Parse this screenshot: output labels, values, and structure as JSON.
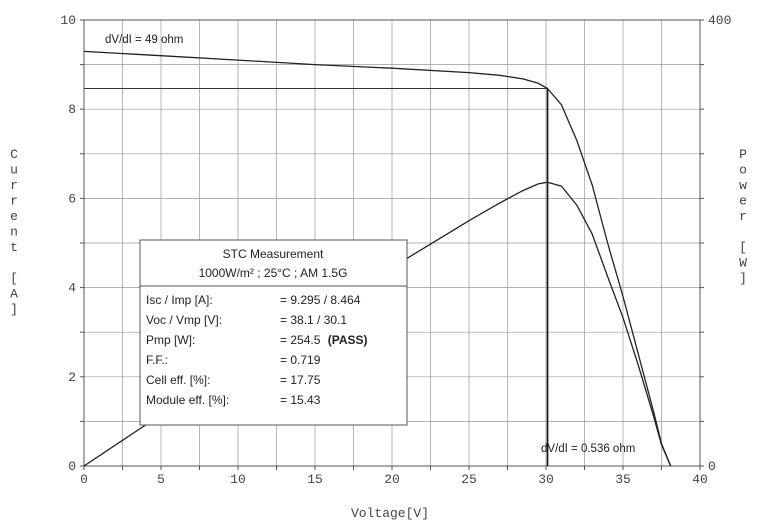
{
  "chart_data": {
    "type": "line",
    "xlabel": "Voltage[V]",
    "ylabel_left": "Current [A]",
    "ylabel_right": "Power [W]",
    "xlim": [
      0,
      40
    ],
    "ylim_left": [
      0,
      10
    ],
    "ylim_right": [
      0,
      400
    ],
    "x_ticks": [
      "0",
      "5",
      "10",
      "15",
      "20",
      "25",
      "30",
      "35",
      "40"
    ],
    "y_ticks_left": [
      "0",
      "2",
      "4",
      "6",
      "8",
      "10"
    ],
    "y_ticks_right": [
      "0",
      "400"
    ],
    "grid": true,
    "series": [
      {
        "axis": "left",
        "x": [
          0,
          5,
          10,
          15,
          20,
          25,
          27,
          28.5,
          29.5,
          30.1,
          31,
          32,
          33,
          34,
          35,
          36,
          37,
          37.5,
          38.1
        ],
        "y": [
          9.295,
          9.2,
          9.1,
          9.0,
          8.92,
          8.82,
          8.76,
          8.68,
          8.58,
          8.464,
          8.1,
          7.3,
          6.3,
          5.0,
          3.8,
          2.5,
          1.2,
          0.5,
          0
        ]
      },
      {
        "axis": "right",
        "x": [
          0,
          5,
          10,
          15,
          20,
          25,
          27,
          28.5,
          29.5,
          30.1,
          31,
          32,
          33,
          34,
          35,
          36,
          37,
          37.5,
          38.1
        ],
        "y": [
          0,
          46,
          91,
          135,
          178,
          220,
          236,
          247,
          253,
          254.5,
          251,
          234,
          208,
          170,
          133,
          90,
          44,
          19,
          0
        ]
      }
    ],
    "reference_lines": {
      "imp": 8.464,
      "vmp": 30.1
    },
    "annotations": {
      "top_left": "dV/dI = 49 ohm",
      "bottom_right": "dV/dI = 0.536 ohm"
    },
    "info_box": {
      "title": "STC Measurement",
      "subtitle": "1000W/m² ;  25°C ;  AM 1.5G",
      "rows": [
        {
          "label": "Isc / Imp [A]:",
          "value": "= 9.295 / 8.464",
          "extra": ""
        },
        {
          "label": "Voc / Vmp [V]:",
          "value": "= 38.1 / 30.1",
          "extra": ""
        },
        {
          "label": "Pmp [W]:",
          "value": "= 254.5 ",
          "extra": "(PASS)"
        },
        {
          "label": "F.F.:",
          "value": "= 0.719",
          "extra": ""
        },
        {
          "label": "Cell eff. [%]:",
          "value": "= 17.75",
          "extra": ""
        },
        {
          "label": "Module eff. [%]:",
          "value": "= 15.43",
          "extra": ""
        }
      ]
    }
  }
}
